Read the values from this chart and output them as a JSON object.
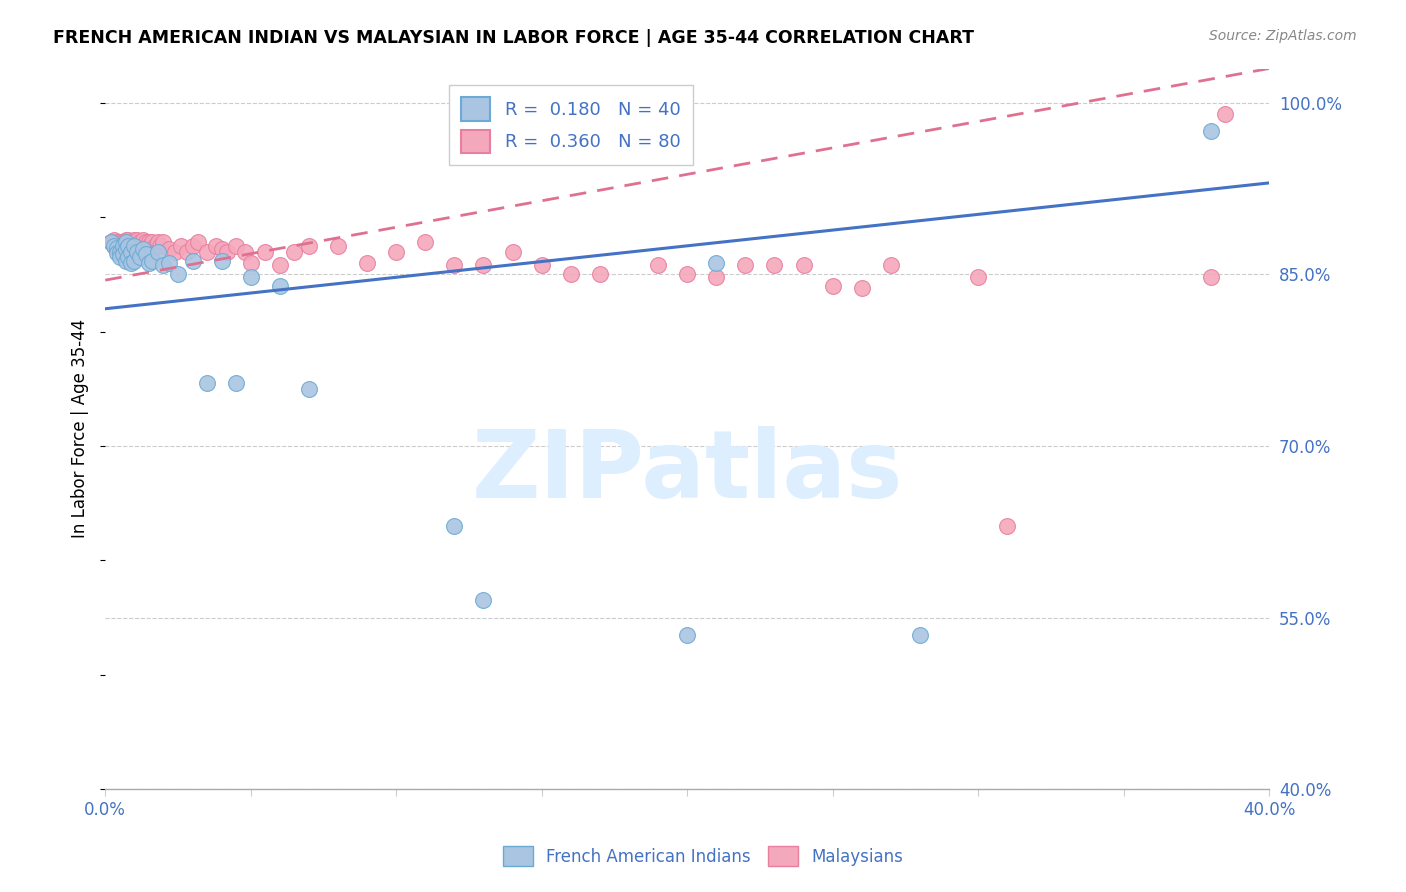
{
  "title": "FRENCH AMERICAN INDIAN VS MALAYSIAN IN LABOR FORCE | AGE 35-44 CORRELATION CHART",
  "source": "Source: ZipAtlas.com",
  "ylabel": "In Labor Force | Age 35-44",
  "xlim": [
    0.0,
    0.4
  ],
  "ylim": [
    0.4,
    1.03
  ],
  "ytick_labels_right": [
    "40.0%",
    "55.0%",
    "70.0%",
    "85.0%",
    "100.0%"
  ],
  "ytick_vals_right": [
    0.4,
    0.55,
    0.7,
    0.85,
    1.0
  ],
  "r_blue": 0.18,
  "n_blue": 40,
  "r_pink": 0.36,
  "n_pink": 80,
  "color_blue_fill": "#aac5e2",
  "color_pink_fill": "#f4a8bb",
  "color_blue_edge": "#6aaad4",
  "color_pink_edge": "#e87fa0",
  "color_trend_blue": "#4472c4",
  "color_trend_pink": "#e07090",
  "color_text_blue": "#4472c4",
  "watermark_text": "ZIPatlas",
  "watermark_color": "#ddeeff",
  "trend_blue_x0": 0.0,
  "trend_blue_y0": 0.82,
  "trend_blue_x1": 0.4,
  "trend_blue_y1": 0.93,
  "trend_pink_x0": 0.0,
  "trend_pink_y0": 0.845,
  "trend_pink_x1": 0.4,
  "trend_pink_y1": 1.03,
  "blue_x": [
    0.002,
    0.003,
    0.004,
    0.004,
    0.005,
    0.005,
    0.006,
    0.006,
    0.007,
    0.007,
    0.007,
    0.008,
    0.008,
    0.009,
    0.009,
    0.01,
    0.01,
    0.011,
    0.012,
    0.013,
    0.014,
    0.015,
    0.016,
    0.018,
    0.02,
    0.022,
    0.025,
    0.03,
    0.035,
    0.04,
    0.045,
    0.05,
    0.06,
    0.07,
    0.12,
    0.13,
    0.2,
    0.21,
    0.28,
    0.38
  ],
  "blue_y": [
    0.878,
    0.875,
    0.873,
    0.869,
    0.87,
    0.865,
    0.875,
    0.868,
    0.878,
    0.872,
    0.862,
    0.875,
    0.865,
    0.87,
    0.86,
    0.875,
    0.862,
    0.87,
    0.865,
    0.872,
    0.868,
    0.86,
    0.862,
    0.87,
    0.858,
    0.86,
    0.85,
    0.862,
    0.755,
    0.862,
    0.755,
    0.848,
    0.84,
    0.75,
    0.63,
    0.565,
    0.535,
    0.86,
    0.535,
    0.975
  ],
  "pink_x": [
    0.002,
    0.003,
    0.003,
    0.004,
    0.004,
    0.005,
    0.005,
    0.005,
    0.006,
    0.006,
    0.006,
    0.007,
    0.007,
    0.007,
    0.008,
    0.008,
    0.008,
    0.009,
    0.009,
    0.009,
    0.01,
    0.01,
    0.01,
    0.011,
    0.011,
    0.011,
    0.012,
    0.012,
    0.013,
    0.013,
    0.014,
    0.014,
    0.015,
    0.015,
    0.016,
    0.016,
    0.017,
    0.018,
    0.019,
    0.02,
    0.022,
    0.024,
    0.026,
    0.028,
    0.03,
    0.032,
    0.035,
    0.038,
    0.04,
    0.042,
    0.045,
    0.048,
    0.05,
    0.055,
    0.06,
    0.065,
    0.07,
    0.08,
    0.09,
    0.1,
    0.11,
    0.12,
    0.13,
    0.14,
    0.15,
    0.16,
    0.17,
    0.19,
    0.2,
    0.21,
    0.22,
    0.23,
    0.24,
    0.25,
    0.26,
    0.27,
    0.3,
    0.31,
    0.38,
    0.385
  ],
  "pink_y": [
    0.878,
    0.88,
    0.875,
    0.878,
    0.872,
    0.878,
    0.875,
    0.87,
    0.878,
    0.875,
    0.87,
    0.88,
    0.878,
    0.872,
    0.88,
    0.875,
    0.87,
    0.878,
    0.875,
    0.87,
    0.88,
    0.878,
    0.872,
    0.88,
    0.875,
    0.87,
    0.878,
    0.875,
    0.88,
    0.875,
    0.878,
    0.872,
    0.878,
    0.875,
    0.878,
    0.87,
    0.875,
    0.878,
    0.875,
    0.878,
    0.872,
    0.87,
    0.875,
    0.87,
    0.875,
    0.878,
    0.87,
    0.875,
    0.872,
    0.87,
    0.875,
    0.87,
    0.86,
    0.87,
    0.858,
    0.87,
    0.875,
    0.875,
    0.86,
    0.87,
    0.878,
    0.858,
    0.858,
    0.87,
    0.858,
    0.85,
    0.85,
    0.858,
    0.85,
    0.848,
    0.858,
    0.858,
    0.858,
    0.84,
    0.838,
    0.858,
    0.848,
    0.63,
    0.848,
    0.99
  ]
}
